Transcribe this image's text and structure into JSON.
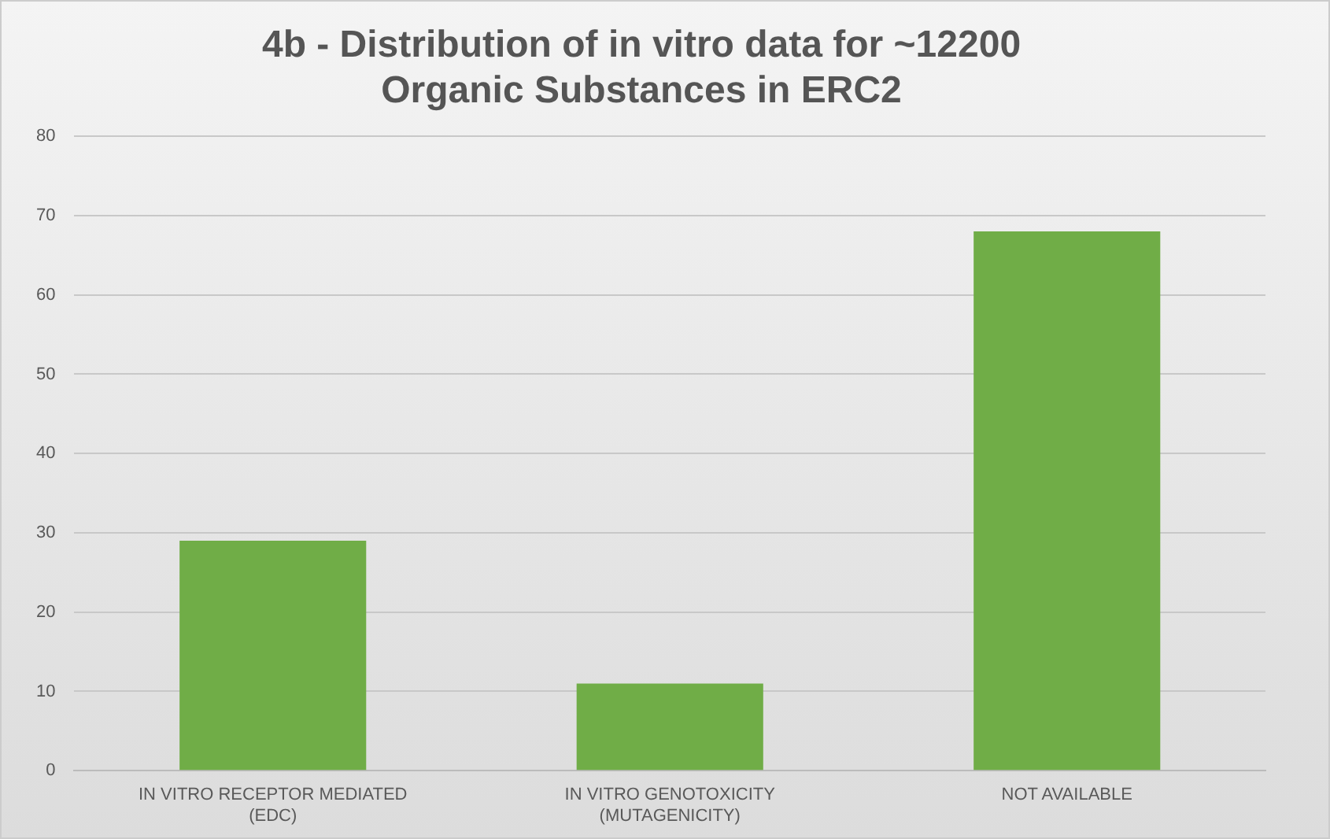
{
  "chart_data": {
    "type": "bar",
    "title": [
      "4b - Distribution of in vitro data for ~12200",
      "Organic Substances in ERC2"
    ],
    "categories": [
      "IN VITRO RECEPTOR MEDIATED (EDC)",
      "IN VITRO GENOTOXICITY (MUTAGENICITY)",
      "NOT AVAILABLE"
    ],
    "values": [
      29,
      11,
      68
    ],
    "color": "#70ad47",
    "ylim": [
      0,
      80
    ],
    "yticks": [
      0,
      10,
      20,
      30,
      40,
      50,
      60,
      70,
      80
    ],
    "grid": "y",
    "legend": false
  }
}
